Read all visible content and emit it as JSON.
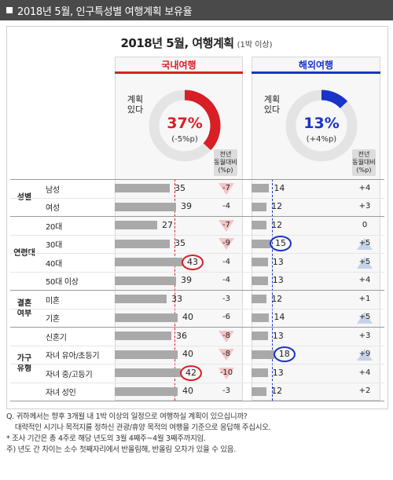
{
  "header": {
    "title": "2018년 5월, 인구특성별 여행계획 보유율"
  },
  "chart_title": {
    "main": "2018년 5월, 여행계획",
    "sub": "(1박 이상)"
  },
  "colors": {
    "domestic": "#d81f26",
    "overseas": "#1a33c8",
    "bar": "#a9a9a9",
    "tri_down": "#f5c4c6",
    "tri_up": "#c5d3ea"
  },
  "panels": {
    "domestic": {
      "label": "국내여행",
      "plan_label": "계획\n있다",
      "pct": "37%",
      "change": "(-5%p)",
      "col_head": "전년\n동월대비\n(%p)"
    },
    "overseas": {
      "label": "해외여행",
      "plan_label": "계획\n있다",
      "pct": "13%",
      "change": "(+4%p)",
      "col_head": "전년\n동월대비\n(%p)"
    }
  },
  "groups": [
    {
      "label": "성별",
      "rows": [
        0,
        1
      ]
    },
    {
      "label": "연령대",
      "rows": [
        2,
        3,
        4,
        5
      ]
    },
    {
      "label": "결혼\n여부",
      "rows": [
        6,
        7
      ]
    },
    {
      "label": "가구\n유형",
      "rows": [
        8,
        9,
        10,
        11
      ]
    }
  ],
  "chart_data": {
    "type": "bar",
    "categories": [
      "남성",
      "여성",
      "20대",
      "30대",
      "40대",
      "50대 이상",
      "미혼",
      "기혼",
      "신혼기",
      "자녀 유아/초등기",
      "자녀 중/고등기",
      "자녀 성인"
    ],
    "series": [
      {
        "name": "국내여행",
        "values": [
          35,
          39,
          27,
          35,
          43,
          39,
          33,
          40,
          36,
          40,
          42,
          40
        ],
        "change": [
          -7,
          -4,
          -7,
          -9,
          -4,
          -4,
          -3,
          -6,
          -8,
          -8,
          -10,
          -3
        ],
        "total": 37,
        "total_change": -5,
        "highlight": [
          4,
          10
        ]
      },
      {
        "name": "해외여행",
        "values": [
          14,
          12,
          12,
          15,
          13,
          13,
          12,
          14,
          13,
          18,
          13,
          12
        ],
        "change": [
          4,
          3,
          0,
          5,
          5,
          4,
          1,
          5,
          3,
          9,
          4,
          2
        ],
        "total": 13,
        "total_change": 4,
        "highlight": [
          3,
          9
        ]
      }
    ],
    "change_labels": {
      "국내여행": [
        "-7",
        "-4",
        "-7",
        "-9",
        "-4",
        "-4",
        "-3",
        "-6",
        "-8",
        "-8",
        "-10",
        "-3"
      ],
      "해외여행": [
        "+4",
        "+3",
        "0",
        "+5",
        "+5",
        "+4",
        "+1",
        "+5",
        "+3",
        "+9",
        "+4",
        "+2"
      ]
    },
    "triangles": {
      "국내여행": [
        true,
        false,
        true,
        true,
        false,
        false,
        false,
        false,
        true,
        true,
        true,
        false
      ],
      "해외여행": [
        false,
        false,
        false,
        true,
        true,
        false,
        false,
        true,
        false,
        true,
        false,
        false
      ]
    }
  },
  "notes": [
    "Q. 귀하께서는 향후 3개월 내 1박 이상의 일정으로 여행하실 계획이 있으십니까?",
    "    대략적인 시기나 목적지를 정하신 관광/휴양 목적의 여행을 기준으로 응답해 주십시오.",
    "* 조사 기간은 총 4주로 해당 년도의 3월 4째주~4월 3째주까지임.",
    "주) 년도 간 차이는 소수 첫째자리에서 반올림해, 반올림 오차가 있을 수 있음."
  ]
}
